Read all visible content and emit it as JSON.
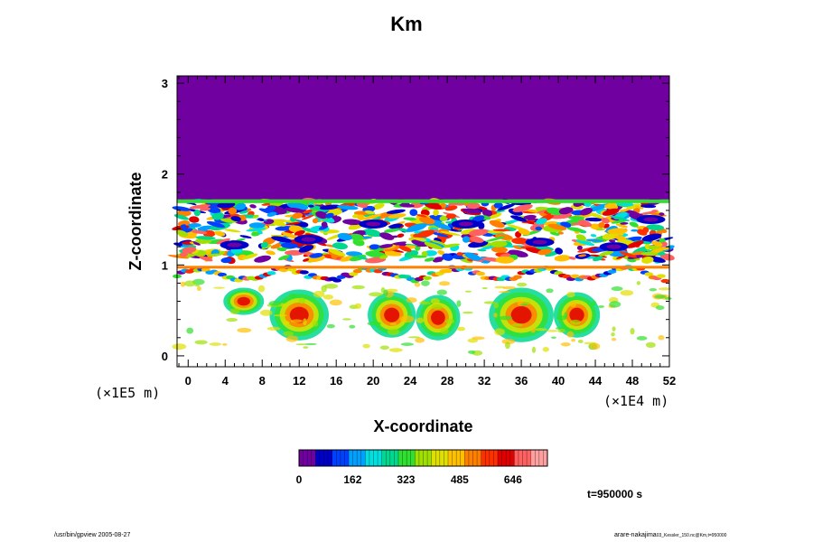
{
  "title": "Km",
  "time_label": "t=950000 s",
  "footer": {
    "left": "/usr/bin/gpview 2005-08-27",
    "right_user": "arare-nakajima",
    "right_file": "03_Kessler_150.nc@Km,t=950000"
  },
  "colorbar": {
    "tick_labels": [
      "0",
      "162",
      "323",
      "485",
      "646"
    ],
    "tick_values": [
      0,
      162,
      323,
      485,
      646
    ],
    "range": [
      0,
      750
    ],
    "colors": [
      "#7000a0",
      "#0000c8",
      "#0040ff",
      "#00a0ff",
      "#00e0e0",
      "#00d890",
      "#30e030",
      "#a0e000",
      "#e0e000",
      "#ffc000",
      "#ff8000",
      "#ff3000",
      "#e00000",
      "#ff6060",
      "#ffa0a0"
    ]
  },
  "chart_data": {
    "type": "heatmap",
    "title": "Km",
    "xlabel": "X-coordinate",
    "ylabel": "Z-coordinate",
    "x_scale_note": "(×1E4 m)",
    "y_scale_note": "(×1E5 m)",
    "xlim": [
      -1.2,
      52
    ],
    "ylim": [
      -0.12,
      3.08
    ],
    "x_ticks": [
      0,
      4,
      8,
      12,
      16,
      20,
      24,
      28,
      32,
      36,
      40,
      44,
      48,
      52
    ],
    "x_tick_labels": [
      "0",
      "4",
      "8",
      "12",
      "16",
      "20",
      "24",
      "28",
      "32",
      "36",
      "40",
      "44",
      "48",
      "52"
    ],
    "y_ticks": [
      0,
      1,
      2,
      3
    ],
    "y_tick_labels": [
      "0",
      "1",
      "2",
      "3"
    ],
    "regions": [
      {
        "desc": "upper layer uniform",
        "z_range": [
          1.72,
          3.08
        ],
        "value": 0
      },
      {
        "desc": "turbulent band",
        "z_range": [
          1.05,
          1.72
        ],
        "value_range": [
          0,
          700
        ]
      },
      {
        "desc": "thin band",
        "z_range": [
          0.85,
          1.0
        ],
        "value_range": [
          0,
          700
        ]
      },
      {
        "desc": "lower cells",
        "z_range": [
          0.0,
          0.8
        ],
        "value_range": [
          0,
          650
        ]
      }
    ]
  }
}
